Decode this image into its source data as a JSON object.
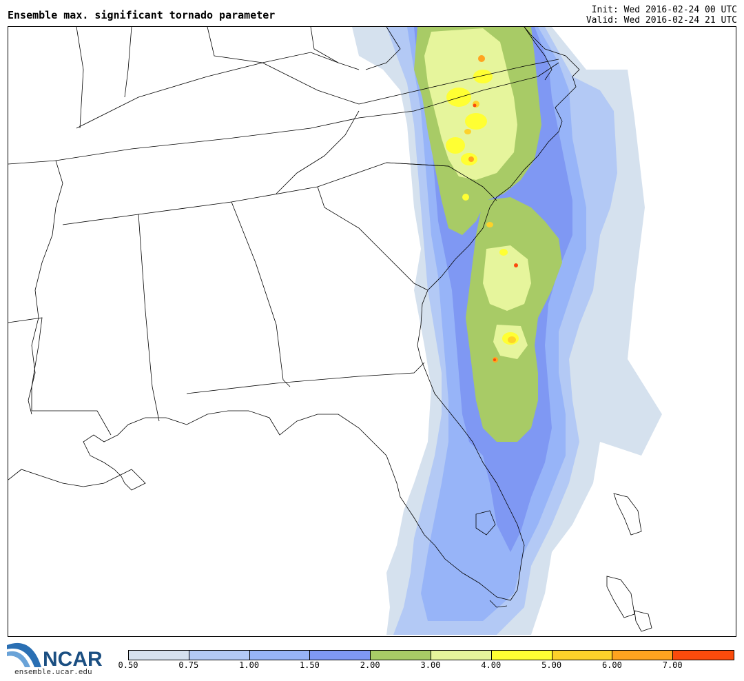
{
  "title": "Ensemble max. significant tornado parameter",
  "init_time": "Init: Wed 2016-02-24 00 UTC",
  "valid_time": "Valid: Wed 2016-02-24 21 UTC",
  "logo": {
    "text": "NCAR",
    "url": "ensemble.ucar.edu",
    "colors": {
      "swoosh": "#2a6fb3",
      "text": "#1b4f82"
    }
  },
  "colorbar": {
    "labels": [
      "0.50",
      "0.75",
      "1.00",
      "1.50",
      "2.00",
      "3.00",
      "4.00",
      "5.00",
      "6.00",
      "7.00"
    ],
    "colors": [
      "#d5e1ee",
      "#b3c9f5",
      "#97b4f8",
      "#7f98f3",
      "#a8cb66",
      "#e6f59c",
      "#ffff33",
      "#fdd22a",
      "#ffa31f",
      "#fa4b0c"
    ]
  },
  "map": {
    "region": "southeastern-us",
    "field_colors": {
      "lt_0_75": "#d5e1ee",
      "0_75_1_00": "#b3c9f5",
      "1_00_1_50": "#97b4f8",
      "1_50_2_00": "#7f98f3",
      "2_00_3_00": "#a8cb66",
      "3_00_4_00": "#e6f59c",
      "4_00_5_00": "#ffff33",
      "5_00_6_00": "#fdd22a",
      "6_00_7_00": "#ffa31f",
      "gt_7_00": "#fa4b0c"
    },
    "boundary_color": "#000000"
  }
}
